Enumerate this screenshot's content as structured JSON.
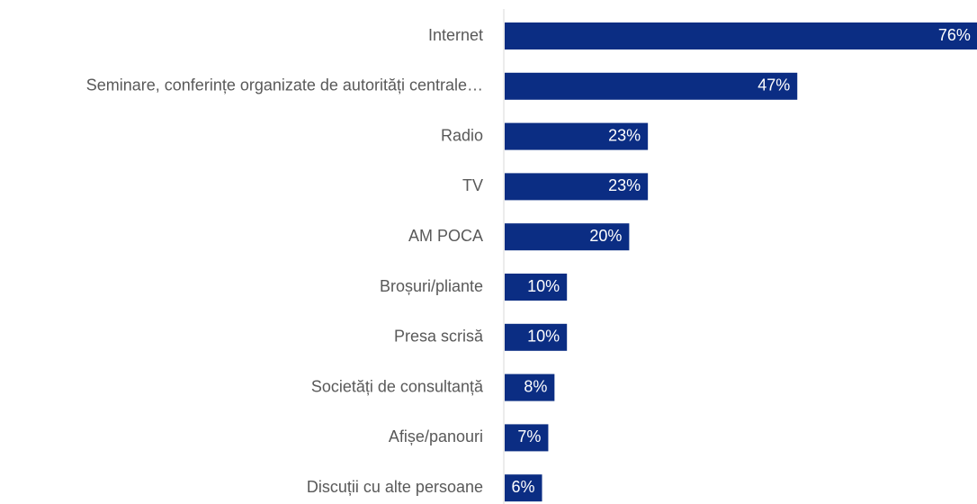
{
  "chart_data": {
    "type": "barh",
    "categories": [
      "Internet",
      "Seminare, conferințe organizate de autorități centrale…",
      "Radio",
      "TV",
      "AM POCA ",
      "Broșuri/pliante",
      "Presa scrisă",
      "Societăți de consultanță",
      "Afișe/panouri",
      "Discuții cu alte persoane"
    ],
    "values": [
      76,
      47,
      23,
      23,
      20,
      10,
      10,
      8,
      7,
      6
    ],
    "value_labels": [
      "76%",
      "47%",
      "23%",
      "23%",
      "20%",
      "10%",
      "10%",
      "8%",
      "7%",
      "6%"
    ],
    "color": "#0b2d83"
  }
}
